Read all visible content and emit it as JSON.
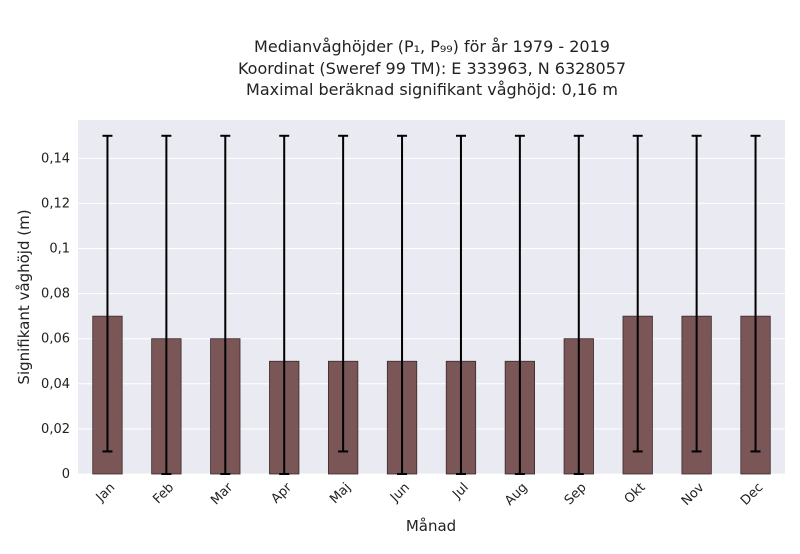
{
  "chart_data": {
    "type": "bar",
    "title_lines": [
      "Medianvåghöjder (P₁, P₉₉) för år 1979 - 2019",
      "Koordinat (Sweref 99 TM): E 333963, N 6328057",
      "Maximal beräknad signifikant våghöjd: 0,16 m"
    ],
    "xlabel": "Månad",
    "ylabel": "Signifikant våghöjd (m)",
    "ylim": [
      0,
      0.157
    ],
    "yticks": [
      0,
      0.02,
      0.04,
      0.06,
      0.08,
      0.1,
      0.12,
      0.14
    ],
    "ytick_labels": [
      "0",
      "0,02",
      "0,04",
      "0,06",
      "0,08",
      "0,1",
      "0,12",
      "0,14"
    ],
    "categories": [
      "Jan",
      "Feb",
      "Mar",
      "Apr",
      "Maj",
      "Jun",
      "Jul",
      "Aug",
      "Sep",
      "Okt",
      "Nov",
      "Dec"
    ],
    "values": [
      0.07,
      0.06,
      0.06,
      0.05,
      0.05,
      0.05,
      0.05,
      0.05,
      0.06,
      0.07,
      0.07,
      0.07
    ],
    "error_low": [
      0.01,
      0,
      0,
      0,
      0.01,
      0,
      0,
      0,
      0,
      0.01,
      0.01,
      0.01
    ],
    "error_high": [
      0.15,
      0.15,
      0.15,
      0.15,
      0.15,
      0.15,
      0.15,
      0.15,
      0.15,
      0.15,
      0.15,
      0.15
    ],
    "grid": true,
    "colors": {
      "bar_fill": "#7a5656",
      "bar_edge": "#3a2a2a",
      "error_bar": "#000000",
      "plot_background": "#eaeaf2",
      "grid": "#ffffff"
    }
  }
}
